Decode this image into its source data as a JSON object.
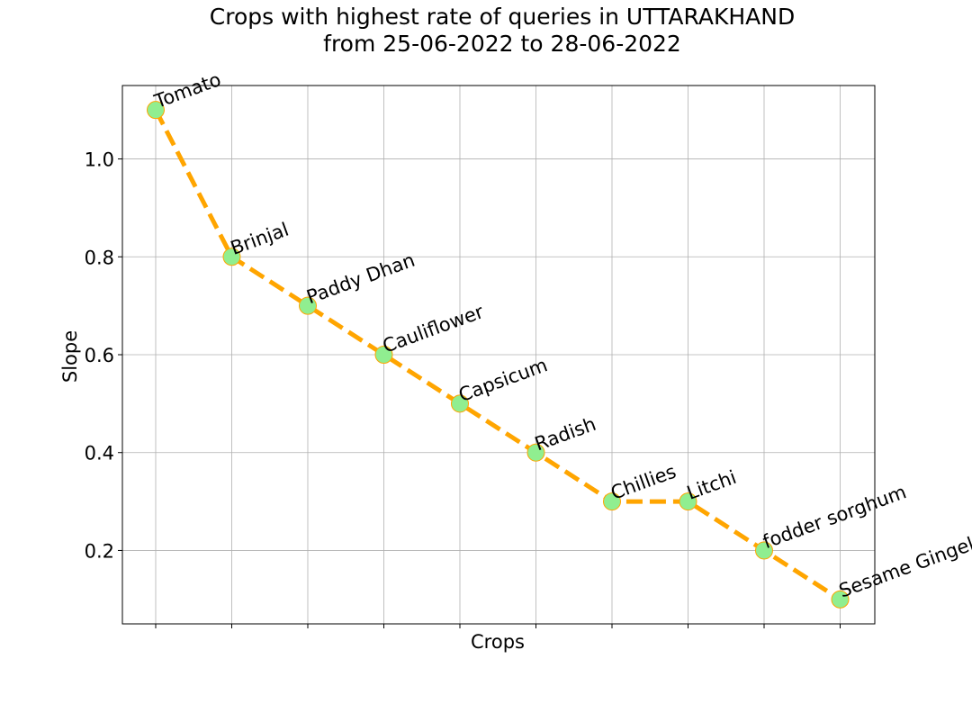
{
  "chart_data": {
    "type": "line",
    "title_line1": "Crops with highest rate of queries in UTTARAKHAND",
    "title_line2": "from 25-06-2022 to 28-06-2022",
    "xlabel": "Crops",
    "ylabel": "Slope",
    "categories": [
      "Tomato",
      "Brinjal",
      "Paddy Dhan",
      "Cauliflower",
      "Capsicum",
      "Radish",
      "Chillies",
      "Litchi",
      "fodder sorghum",
      "Sesame Gingelly"
    ],
    "values": [
      1.1,
      0.8,
      0.7,
      0.6,
      0.5,
      0.4,
      0.3,
      0.3,
      0.2,
      0.1
    ],
    "ylim": [
      0.05,
      1.15
    ],
    "yticks": [
      0.2,
      0.4,
      0.6,
      0.8,
      1.0
    ],
    "grid": true,
    "line_color": "#FFA500",
    "line_style": "dashed",
    "marker_color": "#90EE90",
    "marker_edge_color": "#FFA500"
  }
}
